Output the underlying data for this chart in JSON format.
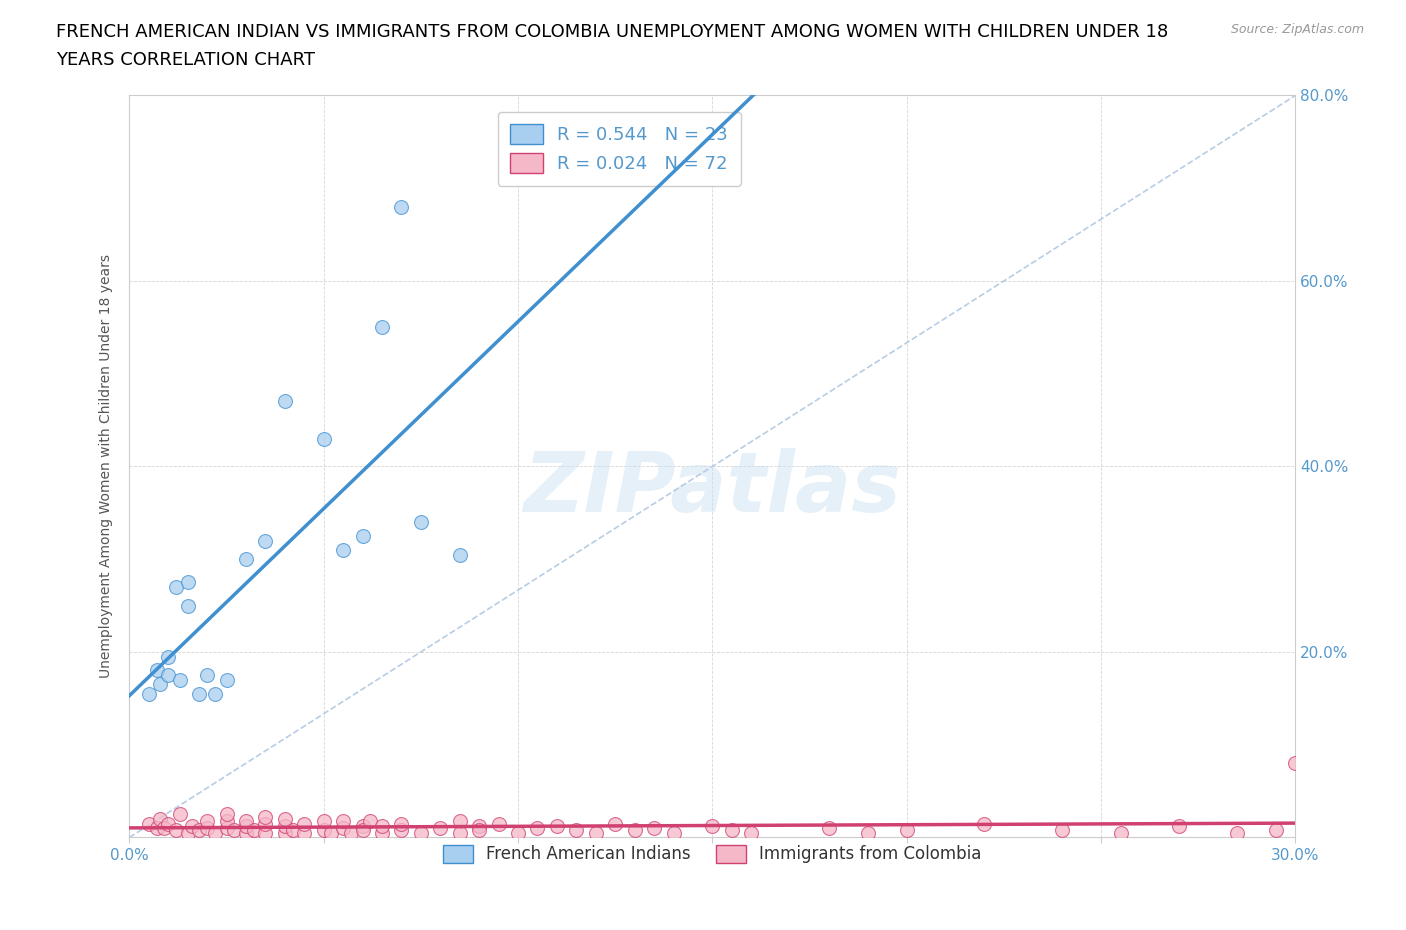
{
  "title_line1": "FRENCH AMERICAN INDIAN VS IMMIGRANTS FROM COLOMBIA UNEMPLOYMENT AMONG WOMEN WITH CHILDREN UNDER 18",
  "title_line2": "YEARS CORRELATION CHART",
  "source": "Source: ZipAtlas.com",
  "watermark": "ZIPatlas",
  "ylabel": "Unemployment Among Women with Children Under 18 years",
  "xlim": [
    0.0,
    0.3
  ],
  "ylim": [
    0.0,
    0.8
  ],
  "xticks": [
    0.0,
    0.05,
    0.1,
    0.15,
    0.2,
    0.25,
    0.3
  ],
  "yticks": [
    0.0,
    0.2,
    0.4,
    0.6,
    0.8
  ],
  "xtick_labels": [
    "0.0%",
    "",
    "",
    "",
    "",
    "",
    "30.0%"
  ],
  "ytick_labels_right": [
    "",
    "20.0%",
    "40.0%",
    "60.0%",
    "80.0%"
  ],
  "blue_R": 0.544,
  "blue_N": 23,
  "pink_R": 0.024,
  "pink_N": 72,
  "blue_color": "#A8CEF0",
  "pink_color": "#F5B8C8",
  "blue_line_color": "#4090D0",
  "pink_line_color": "#D04070",
  "ref_line_color": "#B0C8E0",
  "background_color": "#ffffff",
  "blue_scatter_x": [
    0.005,
    0.007,
    0.008,
    0.01,
    0.01,
    0.012,
    0.013,
    0.015,
    0.015,
    0.018,
    0.02,
    0.022,
    0.025,
    0.03,
    0.035,
    0.04,
    0.05,
    0.055,
    0.06,
    0.065,
    0.07,
    0.075,
    0.085
  ],
  "blue_scatter_y": [
    0.155,
    0.18,
    0.165,
    0.195,
    0.175,
    0.27,
    0.17,
    0.275,
    0.25,
    0.155,
    0.175,
    0.155,
    0.17,
    0.3,
    0.32,
    0.47,
    0.43,
    0.31,
    0.325,
    0.55,
    0.68,
    0.34,
    0.305
  ],
  "pink_scatter_x": [
    0.005,
    0.007,
    0.008,
    0.009,
    0.01,
    0.012,
    0.013,
    0.015,
    0.016,
    0.018,
    0.02,
    0.02,
    0.022,
    0.025,
    0.025,
    0.025,
    0.027,
    0.03,
    0.03,
    0.03,
    0.032,
    0.035,
    0.035,
    0.035,
    0.04,
    0.04,
    0.04,
    0.042,
    0.045,
    0.045,
    0.05,
    0.05,
    0.052,
    0.055,
    0.055,
    0.057,
    0.06,
    0.06,
    0.062,
    0.065,
    0.065,
    0.07,
    0.07,
    0.075,
    0.08,
    0.085,
    0.085,
    0.09,
    0.09,
    0.095,
    0.1,
    0.105,
    0.11,
    0.115,
    0.12,
    0.125,
    0.13,
    0.135,
    0.14,
    0.15,
    0.155,
    0.16,
    0.18,
    0.19,
    0.2,
    0.22,
    0.24,
    0.255,
    0.27,
    0.285,
    0.295,
    0.3
  ],
  "pink_scatter_y": [
    0.015,
    0.01,
    0.02,
    0.01,
    0.015,
    0.008,
    0.025,
    0.005,
    0.012,
    0.008,
    0.01,
    0.018,
    0.005,
    0.01,
    0.018,
    0.025,
    0.008,
    0.005,
    0.012,
    0.018,
    0.008,
    0.005,
    0.015,
    0.022,
    0.005,
    0.012,
    0.02,
    0.008,
    0.005,
    0.015,
    0.008,
    0.018,
    0.005,
    0.01,
    0.018,
    0.005,
    0.012,
    0.008,
    0.018,
    0.005,
    0.012,
    0.008,
    0.015,
    0.005,
    0.01,
    0.018,
    0.005,
    0.012,
    0.008,
    0.015,
    0.005,
    0.01,
    0.012,
    0.008,
    0.005,
    0.015,
    0.008,
    0.01,
    0.005,
    0.012,
    0.008,
    0.005,
    0.01,
    0.005,
    0.008,
    0.015,
    0.008,
    0.005,
    0.012,
    0.005,
    0.008,
    0.08
  ],
  "title_fontsize": 13,
  "axis_label_fontsize": 10,
  "tick_fontsize": 11,
  "legend_fontsize": 13,
  "watermark_fontsize": 60,
  "watermark_color": "#C8DFF0",
  "watermark_alpha": 0.45,
  "tick_color": "#5599CC"
}
